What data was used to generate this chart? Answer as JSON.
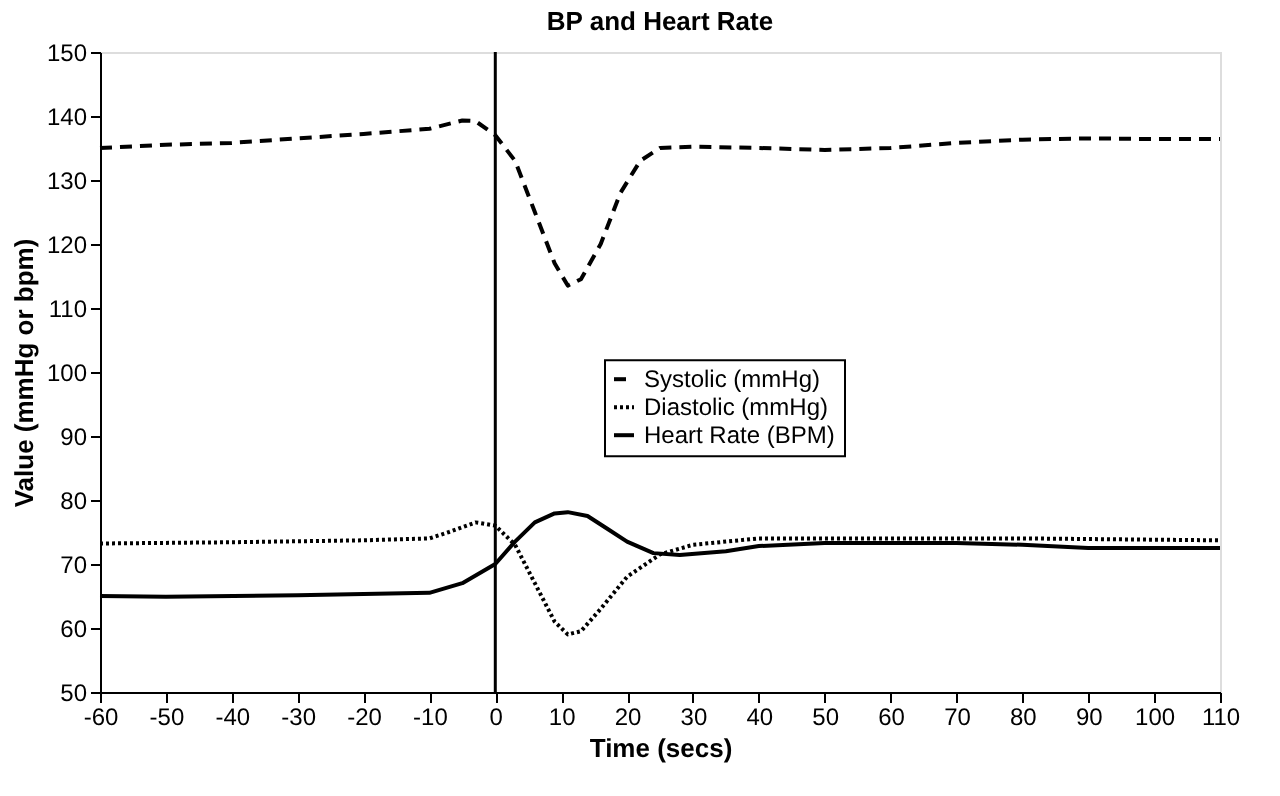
{
  "chart_data": {
    "type": "line",
    "title": "BP and Heart Rate",
    "xlabel": "Time (secs)",
    "ylabel": "Value (mmHg or bpm)",
    "xlim": [
      -60,
      110
    ],
    "xticks": [
      -60,
      -50,
      -40,
      -30,
      -20,
      -10,
      0,
      10,
      20,
      30,
      40,
      50,
      60,
      70,
      80,
      90,
      100,
      110
    ],
    "ylim": [
      50,
      150
    ],
    "yticks": [
      50,
      60,
      70,
      80,
      90,
      100,
      110,
      120,
      130,
      140,
      150
    ],
    "grid": false,
    "legend": "center",
    "marker": "none",
    "ref_lines": [
      {
        "axis": "x",
        "value": 0,
        "color": "#000000",
        "line_style": "solid"
      }
    ],
    "series": [
      {
        "name": "Systolic (mmHg)",
        "color": "#000000",
        "line_style": "dashed",
        "x": [
          -60,
          -50,
          -40,
          -30,
          -20,
          -10,
          -5,
          -3,
          0,
          3,
          6,
          9,
          11,
          13,
          16,
          19,
          22,
          25,
          30,
          40,
          50,
          60,
          70,
          80,
          90,
          100,
          110
        ],
        "values": [
          135,
          135.5,
          135.8,
          136.5,
          137.2,
          138,
          139.3,
          139.2,
          137,
          133,
          125,
          117,
          113.5,
          114.5,
          120,
          128,
          133,
          135,
          135.2,
          135,
          134.7,
          135,
          135.8,
          136.3,
          136.5,
          136.4,
          136.4
        ]
      },
      {
        "name": "Diastolic (mmHg)",
        "color": "#000000",
        "line_style": "dotted",
        "x": [
          -60,
          -40,
          -20,
          -10,
          -7,
          -3,
          0,
          3,
          6,
          9,
          11,
          13,
          16,
          20,
          25,
          30,
          40,
          60,
          80,
          100,
          110
        ],
        "values": [
          73.2,
          73.4,
          73.7,
          74,
          75,
          76.5,
          76,
          73,
          67,
          61,
          59,
          59.5,
          63,
          68,
          71.5,
          73,
          74,
          74,
          74,
          73.8,
          73.7
        ]
      },
      {
        "name": "Heart Rate (BPM)",
        "color": "#000000",
        "line_style": "solid",
        "x": [
          -60,
          -50,
          -30,
          -10,
          -5,
          0,
          3,
          6,
          9,
          11,
          14,
          17,
          20,
          24,
          28,
          35,
          40,
          50,
          60,
          70,
          80,
          90,
          100,
          110
        ],
        "values": [
          65,
          64.9,
          65.1,
          65.5,
          67,
          70,
          73.5,
          76.5,
          77.9,
          78.1,
          77.5,
          75.5,
          73.5,
          71.7,
          71.4,
          72,
          72.8,
          73.3,
          73.3,
          73.3,
          73,
          72.5,
          72.5,
          72.5
        ]
      }
    ]
  }
}
